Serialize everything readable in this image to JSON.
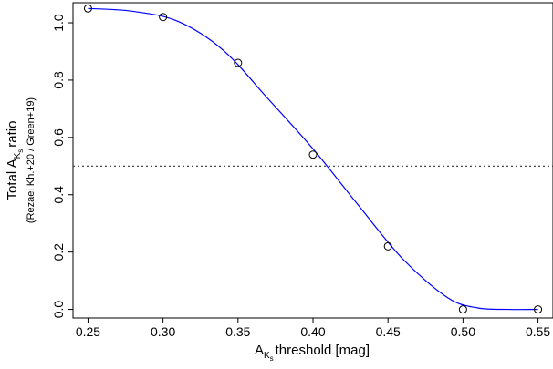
{
  "chart_data": {
    "type": "scatter",
    "x": [
      0.25,
      0.3,
      0.35,
      0.4,
      0.45,
      0.5,
      0.55
    ],
    "y": [
      1.05,
      1.02,
      0.86,
      0.54,
      0.22,
      0.0,
      0.0
    ],
    "fit_curve": {
      "color": "#0000ff",
      "x": [
        0.25,
        0.28,
        0.31,
        0.34,
        0.37,
        0.4,
        0.43,
        0.46,
        0.49,
        0.51,
        0.53,
        0.55
      ],
      "y": [
        1.05,
        1.04,
        1.005,
        0.905,
        0.735,
        0.56,
        0.365,
        0.175,
        0.04,
        0.005,
        0.0,
        0.0
      ]
    },
    "reference_line": {
      "y": 0.5,
      "style": "dotted"
    },
    "xlim": [
      0.24,
      0.56
    ],
    "ylim": [
      -0.03,
      1.07
    ],
    "x_ticks": [
      0.25,
      0.3,
      0.35,
      0.4,
      0.45,
      0.5,
      0.55
    ],
    "x_tick_labels": [
      "0.25",
      "0.30",
      "0.35",
      "0.40",
      "0.45",
      "0.50",
      "0.55"
    ],
    "y_ticks": [
      0.0,
      0.2,
      0.4,
      0.6,
      0.8,
      1.0
    ],
    "y_tick_labels": [
      "0.0",
      "0.2",
      "0.4",
      "0.6",
      "0.8",
      "1.0"
    ],
    "xlabel": {
      "prefix": "A",
      "subscript": "K",
      "sub_subscript": "s",
      "suffix": "threshold [mag]"
    },
    "ylabel": {
      "prefix": "Total A",
      "subscript": "K",
      "sub_subscript": "s",
      "suffix": "ratio",
      "secondary": "(Rezaei Kh.+20 / Green+19)"
    },
    "marker": "open-circle",
    "grid": false
  }
}
